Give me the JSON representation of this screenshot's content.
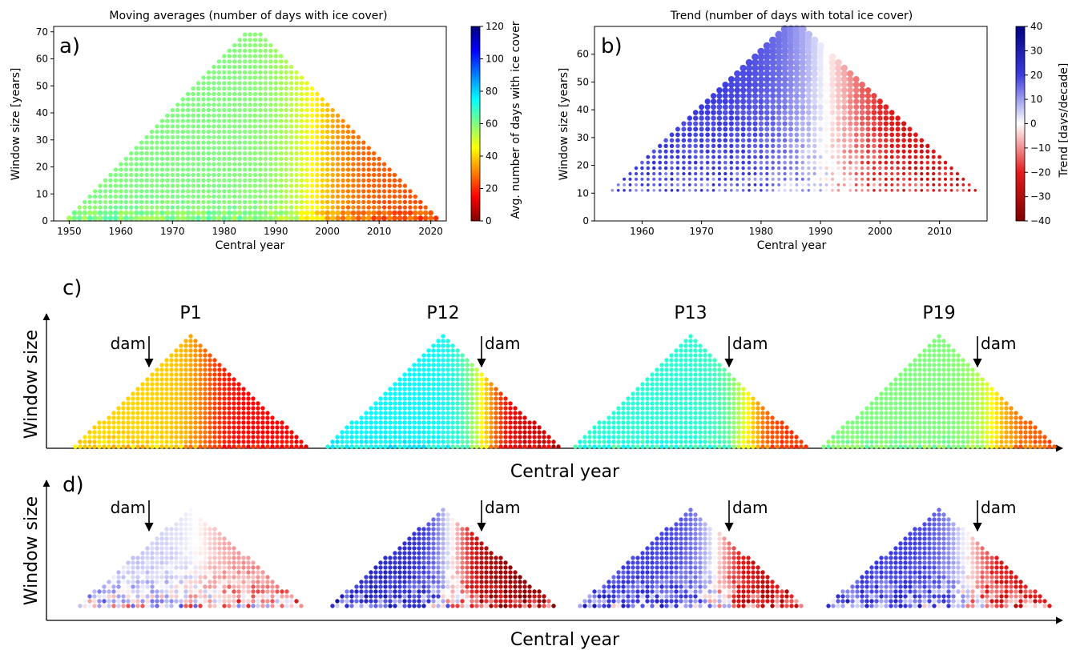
{
  "chart_data": [
    {
      "panel": "a)",
      "type": "scatter",
      "title": "Moving averages (number of days with ice cover)",
      "xlabel": "Central year",
      "ylabel": "Window size [years]",
      "xlim": [
        1947,
        2023
      ],
      "ylim": [
        0,
        72
      ],
      "xticks": [
        1950,
        1960,
        1970,
        1980,
        1990,
        2000,
        2010,
        2020
      ],
      "yticks": [
        0,
        10,
        20,
        30,
        40,
        50,
        60,
        70
      ],
      "colorbar": {
        "label": "Avg. number of days with ice cover",
        "colormap": "jet_r",
        "range": [
          0,
          120
        ],
        "ticks": [
          0,
          20,
          40,
          60,
          80,
          100,
          120
        ]
      },
      "domain": {
        "apex_year": 1985.5,
        "min_year": 1950,
        "max_year": 2021,
        "max_window": 70,
        "min_window": 1
      },
      "field_model": {
        "type": "moving_average",
        "early_mean": 60,
        "late_mean": 25,
        "shift_year": 1998
      },
      "grid": false
    },
    {
      "panel": "b)",
      "type": "scatter",
      "title": "Trend (number of days with total ice cover)",
      "xlabel": "Central year",
      "ylabel": "Window size [years]",
      "xlim": [
        1952,
        2018
      ],
      "ylim": [
        0,
        70
      ],
      "xticks": [
        1960,
        1970,
        1980,
        1990,
        2000,
        2010
      ],
      "yticks": [
        0,
        10,
        20,
        30,
        40,
        50,
        60
      ],
      "colorbar": {
        "label": "Trend [days/decade]",
        "colormap": "seismic_r",
        "range": [
          -40,
          40
        ],
        "ticks": [
          -40,
          -30,
          -20,
          -10,
          0,
          10,
          20,
          30,
          40
        ]
      },
      "domain": {
        "apex_year": 1985.5,
        "min_year": 1955,
        "max_year": 2016,
        "max_window": 70,
        "min_window": 11
      },
      "field_model": {
        "type": "trend",
        "early_value": 20,
        "late_value": -25,
        "shift_year": 1992
      },
      "grid": false
    }
  ],
  "schematic_c": {
    "label": "c)",
    "ylabel": "Window size",
    "xlabel": "Central year",
    "panels": [
      {
        "name": "P1",
        "dam_label": "dam",
        "early_mean": 40,
        "late_mean": 15,
        "shift_year": 1990
      },
      {
        "name": "P12",
        "dam_label": "dam",
        "early_mean": 75,
        "late_mean": 10,
        "shift_year": 1998
      },
      {
        "name": "P13",
        "dam_label": "dam",
        "early_mean": 70,
        "late_mean": 20,
        "shift_year": 2003
      },
      {
        "name": "P19",
        "dam_label": "dam",
        "early_mean": 60,
        "late_mean": 25,
        "shift_year": 2003
      }
    ]
  },
  "schematic_d": {
    "label": "d)",
    "ylabel": "Window size",
    "xlabel": "Central year",
    "panels": [
      {
        "name": "P1",
        "dam_label": "dam",
        "early_value": 5,
        "late_value": -10,
        "shift_year": 1990
      },
      {
        "name": "P12",
        "dam_label": "dam",
        "early_value": 25,
        "late_value": -38,
        "shift_year": 1990
      },
      {
        "name": "P13",
        "dam_label": "dam",
        "early_value": 20,
        "late_value": -30,
        "shift_year": 1995
      },
      {
        "name": "P19",
        "dam_label": "dam",
        "early_value": 20,
        "late_value": -25,
        "shift_year": 1995
      }
    ]
  }
}
